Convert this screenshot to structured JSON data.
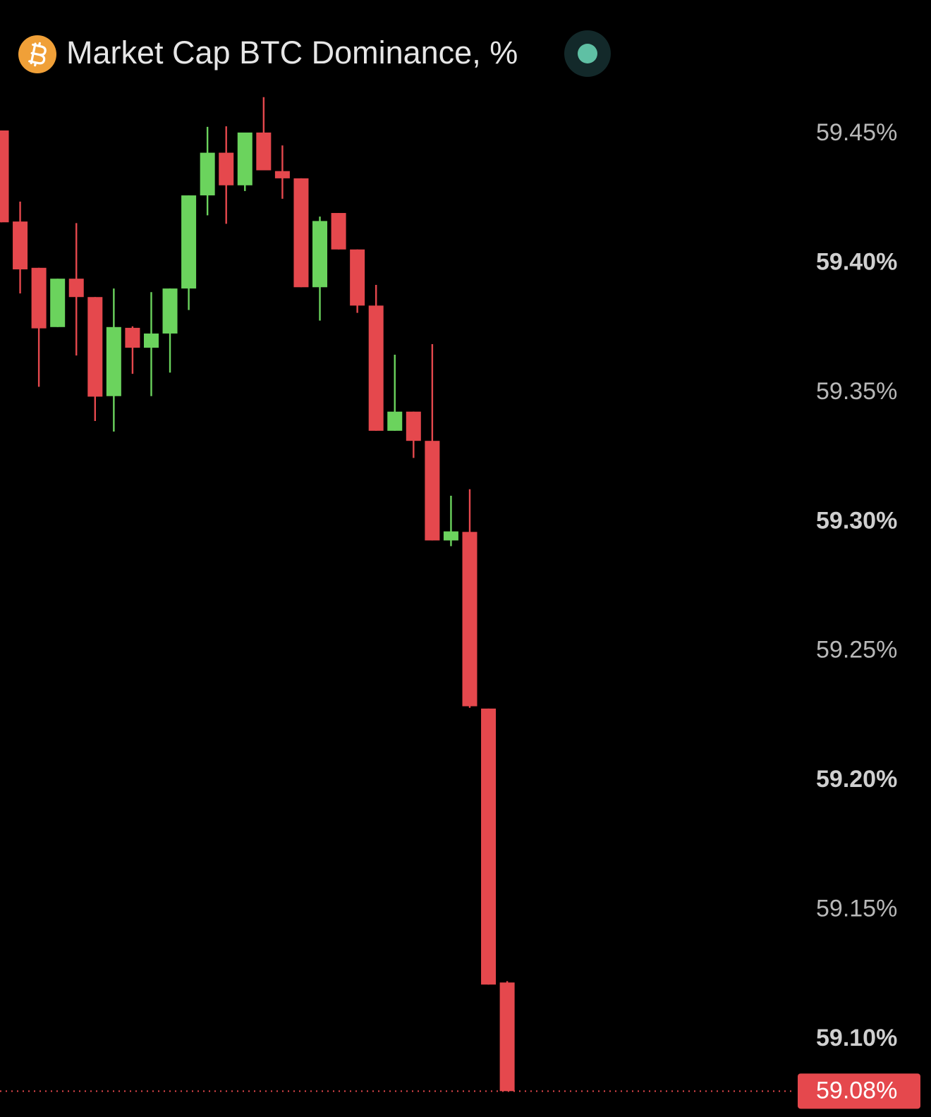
{
  "chart_data": {
    "type": "candlestick",
    "title": "Market Cap BTC Dominance, %",
    "up_color": "#6bd35d",
    "down_color": "#e5484d",
    "ylim": [
      59.07,
      59.4664
    ],
    "yticks": [
      {
        "value": 59.1,
        "label": "59.10%"
      },
      {
        "value": 59.15,
        "label": "59.15%"
      },
      {
        "value": 59.2,
        "label": "59.20%"
      },
      {
        "value": 59.25,
        "label": "59.25%"
      },
      {
        "value": 59.3,
        "label": "59.30%"
      },
      {
        "value": 59.35,
        "label": "59.35%"
      },
      {
        "value": 59.4,
        "label": "59.40%"
      },
      {
        "value": 59.45,
        "label": "59.45%"
      }
    ],
    "last_price": {
      "value": 59.08,
      "label": "59.08%"
    },
    "candles": [
      {
        "open": 59.4514,
        "high": 59.4514,
        "low": 59.4159,
        "close": 59.4159
      },
      {
        "open": 59.4162,
        "high": 59.4239,
        "low": 59.3884,
        "close": 59.3977
      },
      {
        "open": 59.3983,
        "high": 59.3983,
        "low": 59.3523,
        "close": 59.3749
      },
      {
        "open": 59.3754,
        "high": 59.3941,
        "low": 59.3754,
        "close": 59.3941
      },
      {
        "open": 59.3941,
        "high": 59.4156,
        "low": 59.3644,
        "close": 59.387
      },
      {
        "open": 59.387,
        "high": 59.387,
        "low": 59.3391,
        "close": 59.3485
      },
      {
        "open": 59.3487,
        "high": 59.3903,
        "low": 59.335,
        "close": 59.3754
      },
      {
        "open": 59.3751,
        "high": 59.3757,
        "low": 59.3573,
        "close": 59.3674
      },
      {
        "open": 59.3674,
        "high": 59.3889,
        "low": 59.3487,
        "close": 59.3729
      },
      {
        "open": 59.3729,
        "high": 59.3903,
        "low": 59.3578,
        "close": 59.3903
      },
      {
        "open": 59.3903,
        "high": 59.4263,
        "low": 59.382,
        "close": 59.4263
      },
      {
        "open": 59.4263,
        "high": 59.4528,
        "low": 59.4186,
        "close": 59.4428
      },
      {
        "open": 59.4428,
        "high": 59.453,
        "low": 59.4153,
        "close": 59.4302
      },
      {
        "open": 59.4302,
        "high": 59.4506,
        "low": 59.428,
        "close": 59.4506
      },
      {
        "open": 59.4506,
        "high": 59.4643,
        "low": 59.436,
        "close": 59.436
      },
      {
        "open": 59.4357,
        "high": 59.4456,
        "low": 59.425,
        "close": 59.4329
      },
      {
        "open": 59.4329,
        "high": 59.4329,
        "low": 59.3908,
        "close": 59.3908
      },
      {
        "open": 59.3908,
        "high": 59.4181,
        "low": 59.3779,
        "close": 59.4164
      },
      {
        "open": 59.4195,
        "high": 59.4195,
        "low": 59.4054,
        "close": 59.4054
      },
      {
        "open": 59.4054,
        "high": 59.4054,
        "low": 59.3809,
        "close": 59.3837
      },
      {
        "open": 59.3837,
        "high": 59.3917,
        "low": 59.3353,
        "close": 59.3353
      },
      {
        "open": 59.3353,
        "high": 59.3647,
        "low": 59.3353,
        "close": 59.3427
      },
      {
        "open": 59.3427,
        "high": 59.3427,
        "low": 59.3248,
        "close": 59.3314
      },
      {
        "open": 59.3314,
        "high": 59.3688,
        "low": 59.2929,
        "close": 59.2929
      },
      {
        "open": 59.2929,
        "high": 59.3102,
        "low": 59.2907,
        "close": 59.2964
      },
      {
        "open": 59.2962,
        "high": 59.3127,
        "low": 59.2282,
        "close": 59.2288
      },
      {
        "open": 59.2279,
        "high": 59.2279,
        "low": 59.1212,
        "close": 59.1212
      },
      {
        "open": 59.122,
        "high": 59.1225,
        "low": 59.08,
        "close": 59.08
      }
    ]
  }
}
